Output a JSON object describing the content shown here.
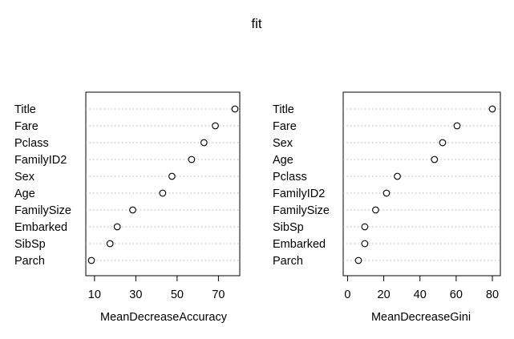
{
  "title": "fit",
  "chart_data": [
    {
      "type": "scatter",
      "xlabel": "MeanDecreaseAccuracy",
      "xlim": [
        8.5,
        78
      ],
      "xticks": [
        10,
        30,
        50,
        70
      ],
      "grid": "dotted-rows",
      "categories": [
        "Title",
        "Fare",
        "Pclass",
        "FamilyID2",
        "Sex",
        "Age",
        "FamilySize",
        "Embarked",
        "SibSp",
        "Parch"
      ],
      "values": [
        78,
        68.5,
        63,
        57,
        47.5,
        43,
        28.5,
        21,
        17.5,
        8.5
      ]
    },
    {
      "type": "scatter",
      "xlabel": "MeanDecreaseGini",
      "xlim": [
        6,
        80
      ],
      "xticks": [
        0,
        20,
        40,
        60,
        80
      ],
      "grid": "dotted-rows",
      "categories": [
        "Title",
        "Fare",
        "Sex",
        "Age",
        "Pclass",
        "FamilyID2",
        "FamilySize",
        "SibSp",
        "Embarked",
        "Parch"
      ],
      "values": [
        80,
        60.5,
        52.5,
        48,
        27.5,
        21.5,
        15.5,
        9.5,
        9.5,
        6
      ]
    }
  ]
}
